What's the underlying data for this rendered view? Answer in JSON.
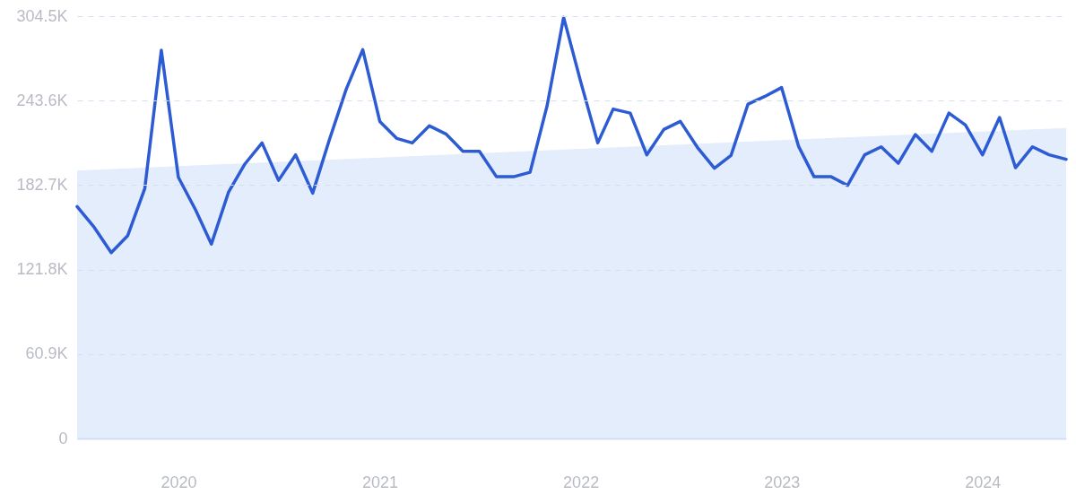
{
  "chart_data": {
    "type": "line",
    "x": [
      "2019-07",
      "2019-08",
      "2019-09",
      "2019-10",
      "2019-11",
      "2019-12",
      "2020-01",
      "2020-02",
      "2020-03",
      "2020-04",
      "2020-05",
      "2020-06",
      "2020-07",
      "2020-08",
      "2020-09",
      "2020-10",
      "2020-11",
      "2020-12",
      "2021-01",
      "2021-02",
      "2021-03",
      "2021-04",
      "2021-05",
      "2021-06",
      "2021-07",
      "2021-08",
      "2021-09",
      "2021-10",
      "2021-11",
      "2021-12",
      "2022-01",
      "2022-02",
      "2022-03",
      "2022-04",
      "2022-05",
      "2022-06",
      "2022-07",
      "2022-08",
      "2022-09",
      "2022-10",
      "2022-11",
      "2022-12",
      "2023-01",
      "2023-02",
      "2023-03",
      "2023-04",
      "2023-05",
      "2023-06",
      "2023-07",
      "2023-08",
      "2023-09",
      "2023-10",
      "2023-11",
      "2023-12",
      "2024-01",
      "2024-02",
      "2024-03",
      "2024-04",
      "2024-05",
      "2024-06"
    ],
    "series": [
      {
        "type": "area",
        "color": "#e3edfc",
        "x": [
          "2019-07",
          "2024-06"
        ],
        "values": [
          193200,
          223900
        ]
      },
      {
        "color": "#2d5bd4",
        "values": [
          167200,
          152300,
          134000,
          146300,
          180300,
          279900,
          188300,
          165000,
          140200,
          177500,
          198000,
          213100,
          186100,
          204500,
          176900,
          215000,
          251900,
          280300,
          228600,
          216300,
          213100,
          225400,
          219600,
          207100,
          207100,
          188700,
          188700,
          191900,
          240000,
          303600,
          257200,
          213100,
          237500,
          234600,
          204500,
          222800,
          228600,
          209900,
          194800,
          204000,
          241100,
          246500,
          253000,
          210500,
          188700,
          188700,
          182500,
          204500,
          210300,
          198400,
          219100,
          207100,
          234600,
          226000,
          204500,
          231400,
          195200,
          210300,
          204500,
          201300
        ]
      }
    ],
    "xlim": [
      "2019-07",
      "2024-06"
    ],
    "xticks": [
      "2020",
      "2021",
      "2022",
      "2023",
      "2024"
    ],
    "ylim": [
      0,
      304500
    ],
    "yticks": [
      0,
      {
        "value": 60900,
        "label": "60.9K"
      },
      {
        "value": 121800,
        "label": "121.8K"
      },
      {
        "value": 182700,
        "label": "182.7K"
      },
      {
        "value": 243600,
        "label": "243.6K"
      },
      {
        "value": 304500,
        "label": "304.5K"
      }
    ],
    "grid": "y",
    "line_style": "solid"
  }
}
